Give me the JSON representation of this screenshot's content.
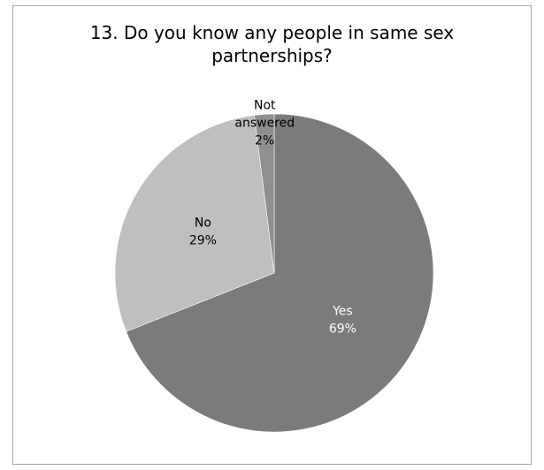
{
  "chart_data": {
    "type": "pie",
    "title_lines": [
      "13. Do you know any people in same sex",
      "partnerships?"
    ],
    "categories": [
      "Yes",
      "No",
      "Not answered"
    ],
    "values": [
      69,
      29,
      2
    ],
    "percent_labels": [
      "69%",
      "29%",
      "2%"
    ],
    "label_lines": [
      [
        "Yes"
      ],
      [
        "No"
      ],
      [
        "Not",
        "answered"
      ]
    ],
    "colors": [
      "#7b7b7b",
      "#bfbfbf",
      "#8f8f8f"
    ],
    "label_colors": [
      "#ffffff",
      "#000000",
      "#000000"
    ],
    "legend": "none"
  }
}
